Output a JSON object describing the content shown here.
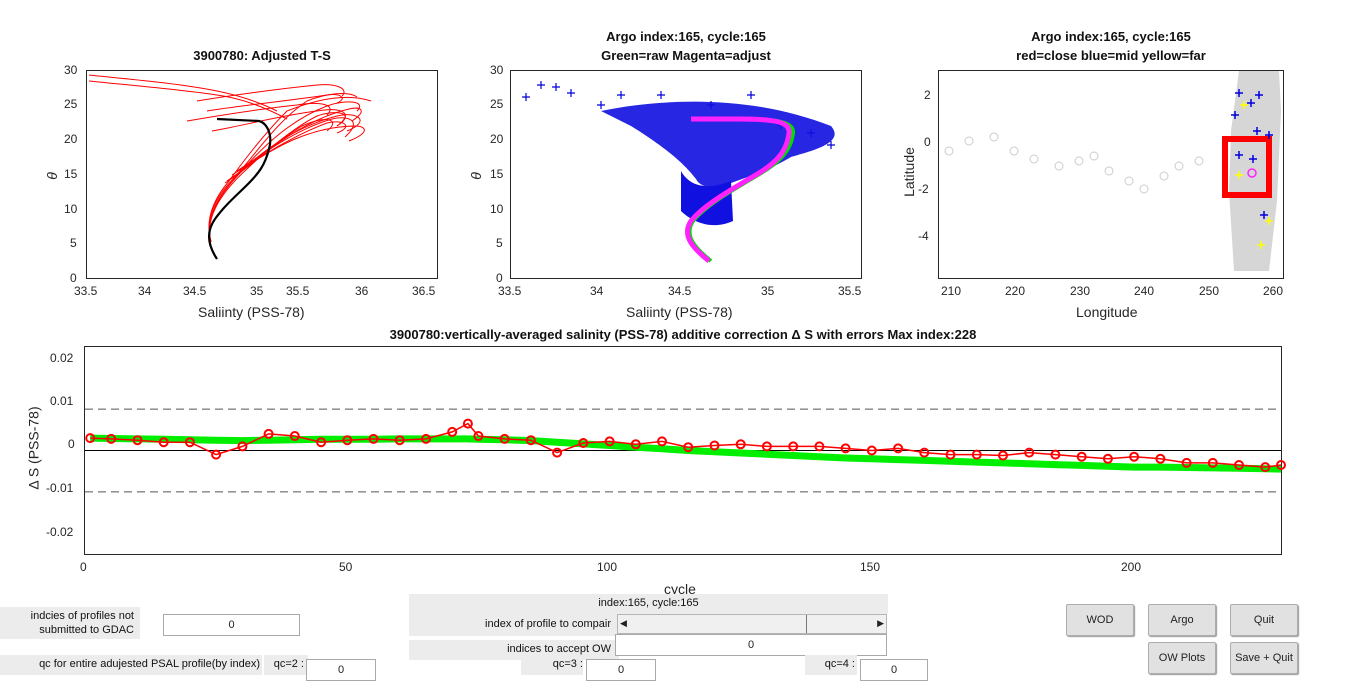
{
  "ts_plot": {
    "title": "3900780: Adjusted T-S",
    "xlabel": "Saliinty (PSS-78)",
    "ylabel": "θ",
    "xticks": [
      "33.5",
      "34",
      "34.5",
      "35",
      "35.5",
      "36",
      "36.5"
    ],
    "yticks": [
      "0",
      "5",
      "10",
      "15",
      "20",
      "25",
      "30"
    ],
    "colors": {
      "profiles": "#ff0000",
      "selected": "#000000"
    }
  },
  "raw_adj_plot": {
    "title_line1": "Argo index:165, cycle:165",
    "title_line2": "Green=raw Magenta=adjust",
    "xlabel": "Saliinty (PSS-78)",
    "ylabel": "θ",
    "xticks": [
      "33.5",
      "34",
      "34.5",
      "35",
      "35.5"
    ],
    "yticks": [
      "0",
      "5",
      "10",
      "15",
      "20",
      "25",
      "30"
    ],
    "colors": {
      "raw": "#00dd00",
      "adjusted": "#ff22ff",
      "historical": "#0000dd"
    }
  },
  "map_plot": {
    "title_line1": "Argo index:165, cycle:165",
    "title_line2": "red=close blue=mid yellow=far",
    "xlabel": "Longitude",
    "ylabel": "Latitude",
    "xticks": [
      "210",
      "220",
      "230",
      "240",
      "250",
      "260"
    ],
    "yticks": [
      "2",
      "0",
      "-2",
      "-4"
    ],
    "colors": {
      "close": "#ff0000",
      "mid": "#0000dd",
      "far": "#ffff00",
      "track": "#cccccc"
    }
  },
  "correction_plot": {
    "title": "3900780:vertically-averaged salinity (PSS-78) additive correction Δ S with errors Max index:228",
    "xlabel": "cycle",
    "ylabel": "Δ S (PSS-78)",
    "xticks": [
      "0",
      "50",
      "100",
      "150",
      "200"
    ],
    "yticks": [
      "0.02",
      "0.01",
      "0",
      "-0.01",
      "-0.02"
    ],
    "colors": {
      "error_band": "#00ee00",
      "correction": "#ff0000"
    },
    "chart_data": {
      "type": "line",
      "x": [
        1,
        5,
        10,
        15,
        20,
        25,
        30,
        35,
        40,
        45,
        50,
        55,
        60,
        65,
        70,
        73,
        75,
        80,
        85,
        90,
        95,
        100,
        105,
        110,
        115,
        120,
        125,
        130,
        135,
        140,
        145,
        150,
        155,
        160,
        165,
        170,
        175,
        180,
        185,
        190,
        195,
        200,
        205,
        210,
        215,
        220,
        225,
        228
      ],
      "series": [
        {
          "values": [
            0.003,
            0.0028,
            0.0025,
            0.002,
            0.002,
            -0.001,
            0.001,
            0.004,
            0.0035,
            0.002,
            0.0025,
            0.0028,
            0.0025,
            0.0028,
            0.0045,
            0.0065,
            0.0035,
            0.0028,
            0.0025,
            -0.0005,
            0.0018,
            0.0022,
            0.0015,
            0.0022,
            0.0008,
            0.0012,
            0.0015,
            0.001,
            0.001,
            0.001,
            0.0005,
            0.0,
            0.0005,
            -0.0005,
            -0.001,
            -0.001,
            -0.0012,
            -0.0005,
            -0.001,
            -0.0015,
            -0.002,
            -0.0015,
            -0.002,
            -0.003,
            -0.003,
            -0.0035,
            -0.004,
            -0.0035
          ]
        },
        {
          "values": [
            0.003,
            0.0029,
            0.0028,
            0.0027,
            0.0026,
            0.0025,
            0.0024,
            0.0025,
            0.0026,
            0.0027,
            0.0027,
            0.0027,
            0.0028,
            0.0028,
            0.0028,
            0.0028,
            0.0027,
            0.0026,
            0.0024,
            0.002,
            0.0016,
            0.0012,
            0.0008,
            0.0004,
            0.0,
            -0.0003,
            -0.0006,
            -0.0009,
            -0.0012,
            -0.0015,
            -0.0018,
            -0.002,
            -0.0022,
            -0.0024,
            -0.0026,
            -0.0028,
            -0.003,
            -0.0032,
            -0.0034,
            -0.0036,
            -0.0038,
            -0.004,
            -0.004,
            -0.0041,
            -0.0042,
            -0.0043,
            -0.0044,
            -0.0045
          ]
        }
      ],
      "xlim": [
        0,
        228
      ],
      "ylim": [
        -0.025,
        0.025
      ]
    }
  },
  "controls": {
    "not_submitted_label": "indcies of profiles not\nsubmitted to GDAC",
    "not_submitted_value": "0",
    "profile_info": "index:165, cycle:165",
    "index_compare_label": "index of profile to compair",
    "accept_ow_label": "indices to accept OW",
    "accept_ow_value": "0",
    "qc_entire_label": "qc for entire adujested PSAL profile(by index)",
    "qc2_label": "qc=2 :",
    "qc2_value": "0",
    "qc3_label": "qc=3 :",
    "qc3_value": "0",
    "qc4_label": "qc=4 :",
    "qc4_value": "0",
    "wod_button": "WOD",
    "argo_button": "Argo",
    "quit_button": "Quit",
    "ow_plots_button": "OW Plots",
    "save_quit_button": "Save + Quit"
  }
}
